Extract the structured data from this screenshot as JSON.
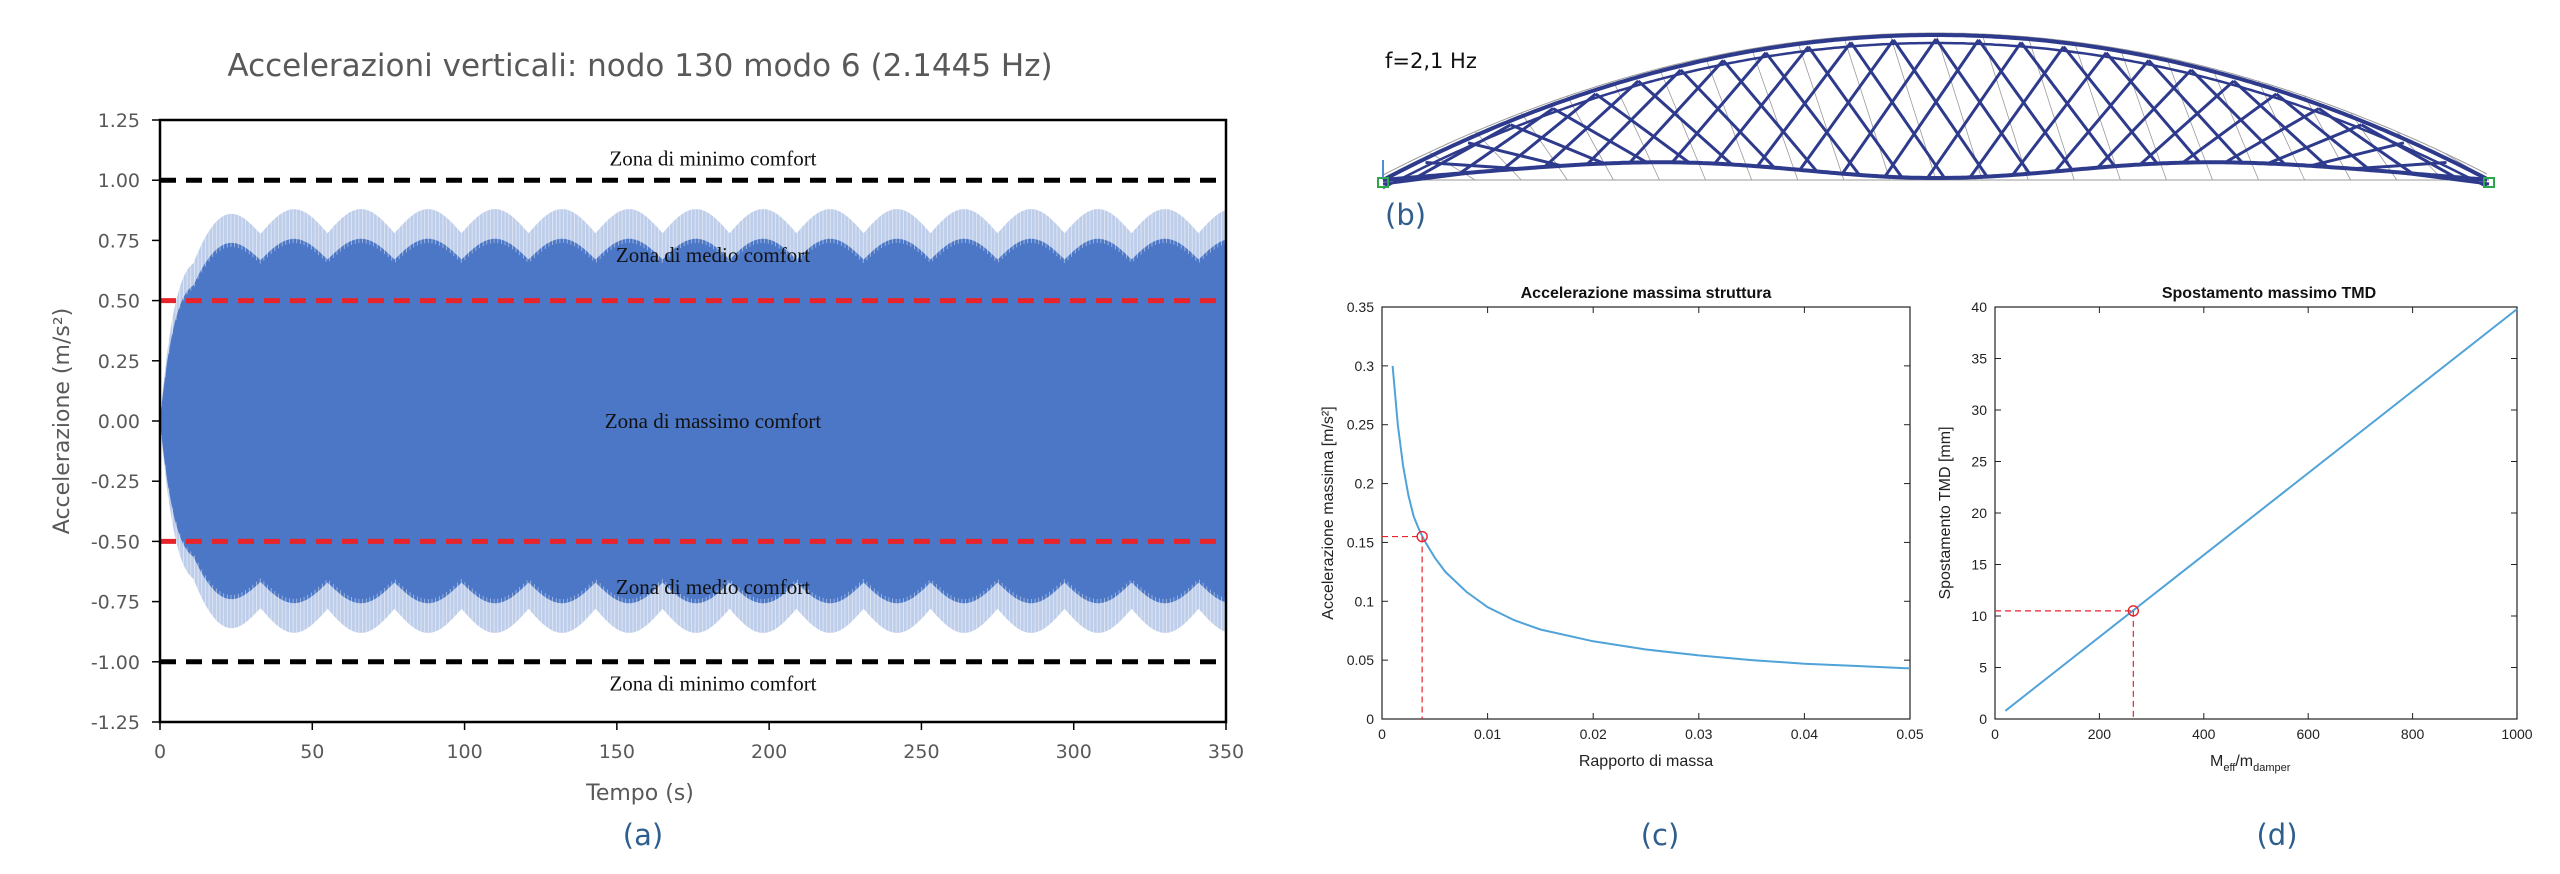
{
  "panel_labels": {
    "a": "(a)",
    "b": "(b)",
    "c": "(c)",
    "d": "(d)"
  },
  "bridge": {
    "frequency_label": "f=2,1 Hz",
    "member_color": "#2e3a8c"
  },
  "chart_data": [
    {
      "id": "a",
      "type": "area",
      "title": "Accelerazioni verticali: nodo 130 modo 6 (2.1445 Hz)",
      "xlabel": "Tempo (s)",
      "ylabel": "Accelerazione (m/s²)",
      "xlim": [
        0,
        350
      ],
      "ylim": [
        -1.25,
        1.25
      ],
      "x_ticks": [
        "0",
        "50",
        "100",
        "150",
        "200",
        "250",
        "300",
        "350"
      ],
      "y_ticks": [
        "1.25",
        "1.00",
        "0.75",
        "0.50",
        "0.25",
        "0.00",
        "-0.25",
        "-0.50",
        "-0.75",
        "-1.00",
        "-1.25"
      ],
      "grid": false,
      "fill_color": "#4472c4",
      "envelope_peak": 0.88,
      "envelope_trough": 0.68,
      "envelope_period_s": 22,
      "thresholds": [
        {
          "value": 1.0,
          "color": "#000000"
        },
        {
          "value": -1.0,
          "color": "#000000"
        },
        {
          "value": 0.5,
          "color": "#e8242b"
        },
        {
          "value": -0.5,
          "color": "#e8242b"
        }
      ],
      "zones": [
        {
          "label": "Zona di minimo comfort",
          "y": 1.09
        },
        {
          "label": "Zona di medio comfort",
          "y": 0.69
        },
        {
          "label": "Zona di massimo comfort",
          "y": 0.0
        },
        {
          "label": "Zona di medio comfort",
          "y": -0.69
        },
        {
          "label": "Zona di minimo comfort",
          "y": -1.09
        }
      ]
    },
    {
      "id": "c",
      "type": "line",
      "title": "Accelerazione massima struttura",
      "xlabel": "Rapporto di massa",
      "ylabel": "Accelerazione massima [m/s²]",
      "xlim": [
        0,
        0.05
      ],
      "ylim": [
        0,
        0.35
      ],
      "x_ticks": [
        "0",
        "0.01",
        "0.02",
        "0.03",
        "0.04",
        "0.05"
      ],
      "y_ticks": [
        "0",
        "0.05",
        "0.1",
        "0.15",
        "0.2",
        "0.25",
        "0.3",
        "0.35"
      ],
      "grid": false,
      "line_color": "#4fa3d9",
      "x": [
        0.001,
        0.0015,
        0.002,
        0.0025,
        0.003,
        0.0035,
        0.004,
        0.005,
        0.006,
        0.008,
        0.01,
        0.0125,
        0.015,
        0.02,
        0.025,
        0.03,
        0.035,
        0.04,
        0.045,
        0.05
      ],
      "y": [
        0.3,
        0.25,
        0.215,
        0.19,
        0.172,
        0.161,
        0.152,
        0.137,
        0.125,
        0.108,
        0.095,
        0.084,
        0.076,
        0.066,
        0.059,
        0.054,
        0.05,
        0.047,
        0.045,
        0.043
      ],
      "marker": {
        "x": 0.0038,
        "y": 0.155,
        "color": "#e8242b"
      }
    },
    {
      "id": "d",
      "type": "line",
      "title": "Spostamento massimo TMD",
      "xlabel": "M",
      "xlabel_sub1": "eff",
      "xlabel_mid": "/m",
      "xlabel_sub2": "damper",
      "ylabel": "Spostamento TMD [mm]",
      "xlim": [
        0,
        1000
      ],
      "ylim": [
        0,
        40
      ],
      "x_ticks": [
        "0",
        "200",
        "400",
        "600",
        "800",
        "1000"
      ],
      "y_ticks": [
        "0",
        "5",
        "10",
        "15",
        "20",
        "25",
        "30",
        "35",
        "40"
      ],
      "grid": false,
      "line_color": "#4fa3d9",
      "x": [
        20,
        1000
      ],
      "y": [
        0.8,
        39.8
      ],
      "marker": {
        "x": 265,
        "y": 10.5,
        "color": "#e8242b"
      }
    }
  ]
}
